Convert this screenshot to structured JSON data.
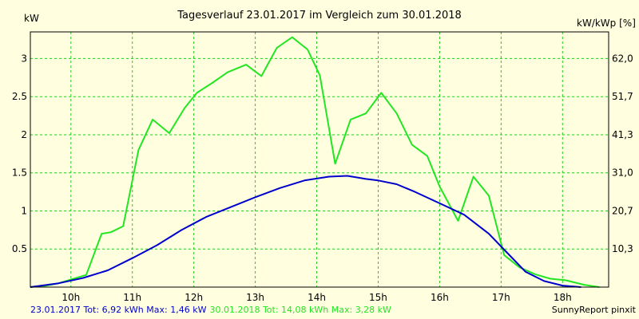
{
  "chart_data": {
    "type": "line",
    "title": "Tagesverlauf 23.01.2017 im Vergleich zum 30.01.2018",
    "ylabel_left": "kW",
    "ylabel_right": "kW/kWp [%]",
    "xticks": [
      "10h",
      "11h",
      "12h",
      "13h",
      "14h",
      "15h",
      "16h",
      "17h",
      "18h"
    ],
    "yticks_left": [
      "0.5",
      "1",
      "1.5",
      "2",
      "2.5",
      "3"
    ],
    "yticks_right": [
      "10,3",
      "20,7",
      "31,0",
      "41,3",
      "51,7",
      "62,0"
    ],
    "xlim": [
      9.34,
      18.75
    ],
    "ylim": [
      0,
      3.35
    ],
    "grid": true,
    "series": [
      {
        "name": "30.01.2018",
        "color": "#22e622",
        "x": [
          9.34,
          9.6,
          9.8,
          10.0,
          10.25,
          10.5,
          10.65,
          10.85,
          11.1,
          11.33,
          11.6,
          11.85,
          12.05,
          12.3,
          12.55,
          12.85,
          13.1,
          13.35,
          13.6,
          13.85,
          14.05,
          14.3,
          14.55,
          14.8,
          15.05,
          15.3,
          15.55,
          15.8,
          16.0,
          16.3,
          16.55,
          16.8,
          17.05,
          17.3,
          17.55,
          17.8,
          18.05,
          18.35,
          18.6
        ],
        "y": [
          0.0,
          0.02,
          0.05,
          0.1,
          0.16,
          0.7,
          0.72,
          0.8,
          1.8,
          2.2,
          2.02,
          2.35,
          2.55,
          2.68,
          2.82,
          2.92,
          2.77,
          3.14,
          3.28,
          3.12,
          2.78,
          1.62,
          2.2,
          2.28,
          2.55,
          2.28,
          1.87,
          1.72,
          1.32,
          0.87,
          1.45,
          1.2,
          0.42,
          0.26,
          0.17,
          0.11,
          0.09,
          0.03,
          0.0
        ]
      },
      {
        "name": "23.01.2017",
        "color": "#0000cc",
        "x": [
          9.34,
          9.8,
          10.2,
          10.6,
          11.0,
          11.4,
          11.8,
          12.2,
          12.6,
          13.0,
          13.4,
          13.8,
          14.2,
          14.5,
          14.8,
          15.0,
          15.3,
          15.6,
          16.0,
          16.4,
          16.8,
          17.1,
          17.4,
          17.7,
          18.0,
          18.3
        ],
        "y": [
          0.0,
          0.05,
          0.12,
          0.22,
          0.38,
          0.55,
          0.75,
          0.92,
          1.05,
          1.18,
          1.3,
          1.4,
          1.45,
          1.46,
          1.42,
          1.4,
          1.35,
          1.25,
          1.1,
          0.95,
          0.7,
          0.45,
          0.2,
          0.08,
          0.02,
          0.0
        ]
      }
    ]
  },
  "footer": {
    "series1_text": "23.01.2017 Tot: 6,92 kWh Max: 1,46 kW",
    "series1_color": "#0000cc",
    "series2_text": "30.01.2018 Tot: 14,08 kWh Max: 3,28 kW",
    "series2_color": "#22e622",
    "credit": "SunnyReport pinxit"
  }
}
